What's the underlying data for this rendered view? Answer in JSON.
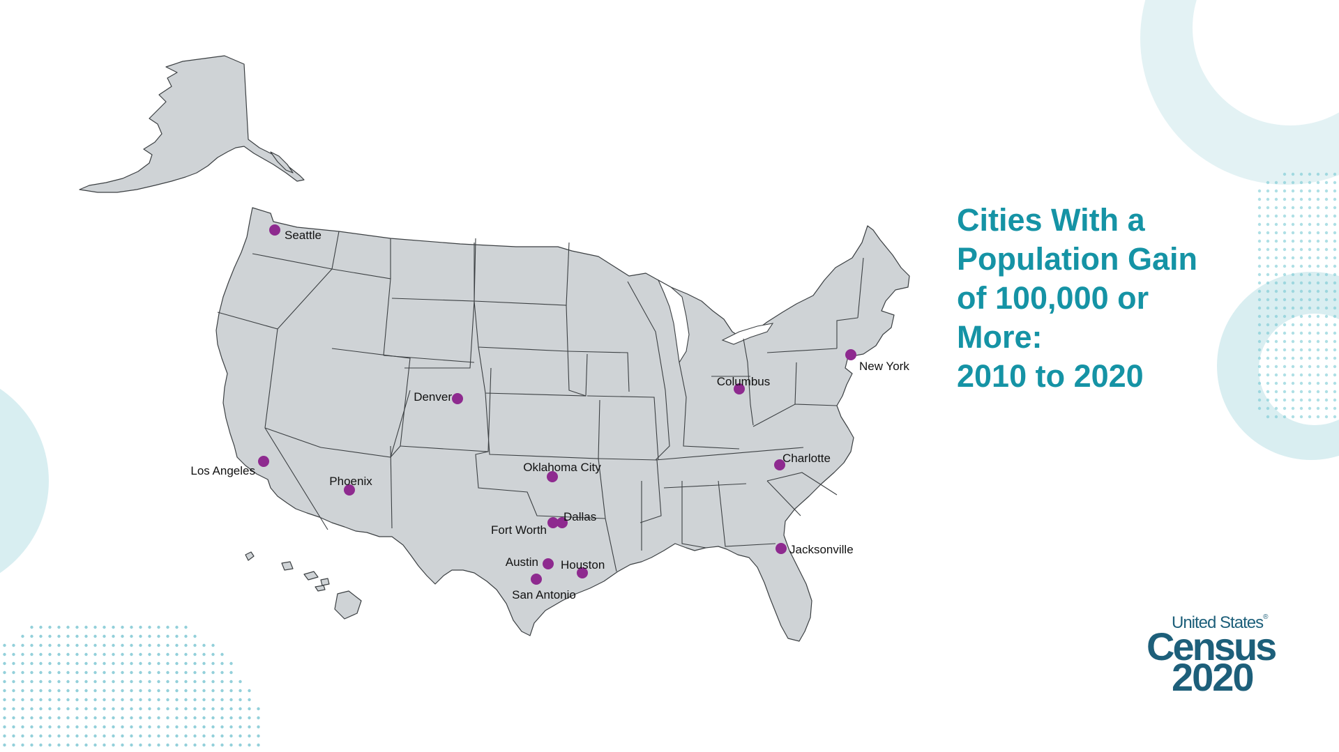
{
  "title": {
    "lines": [
      "Cities With a",
      "Population Gain",
      "of 100,000 or",
      "More:",
      "2010 to 2020"
    ]
  },
  "logo": {
    "top": "United States",
    "registered": "®",
    "middle": "Census",
    "year": "2020"
  },
  "colors": {
    "accent": "#1593a5",
    "city_dot": "#8e2a8f",
    "land": "#cfd3d6",
    "decor": "#d7eef1"
  },
  "cities": [
    {
      "name": "Seattle"
    },
    {
      "name": "Los Angeles"
    },
    {
      "name": "Phoenix"
    },
    {
      "name": "Denver"
    },
    {
      "name": "Oklahoma City"
    },
    {
      "name": "Fort Worth"
    },
    {
      "name": "Dallas"
    },
    {
      "name": "Austin"
    },
    {
      "name": "Houston"
    },
    {
      "name": "San Antonio"
    },
    {
      "name": "Columbus"
    },
    {
      "name": "New York"
    },
    {
      "name": "Charlotte"
    },
    {
      "name": "Jacksonville"
    }
  ]
}
